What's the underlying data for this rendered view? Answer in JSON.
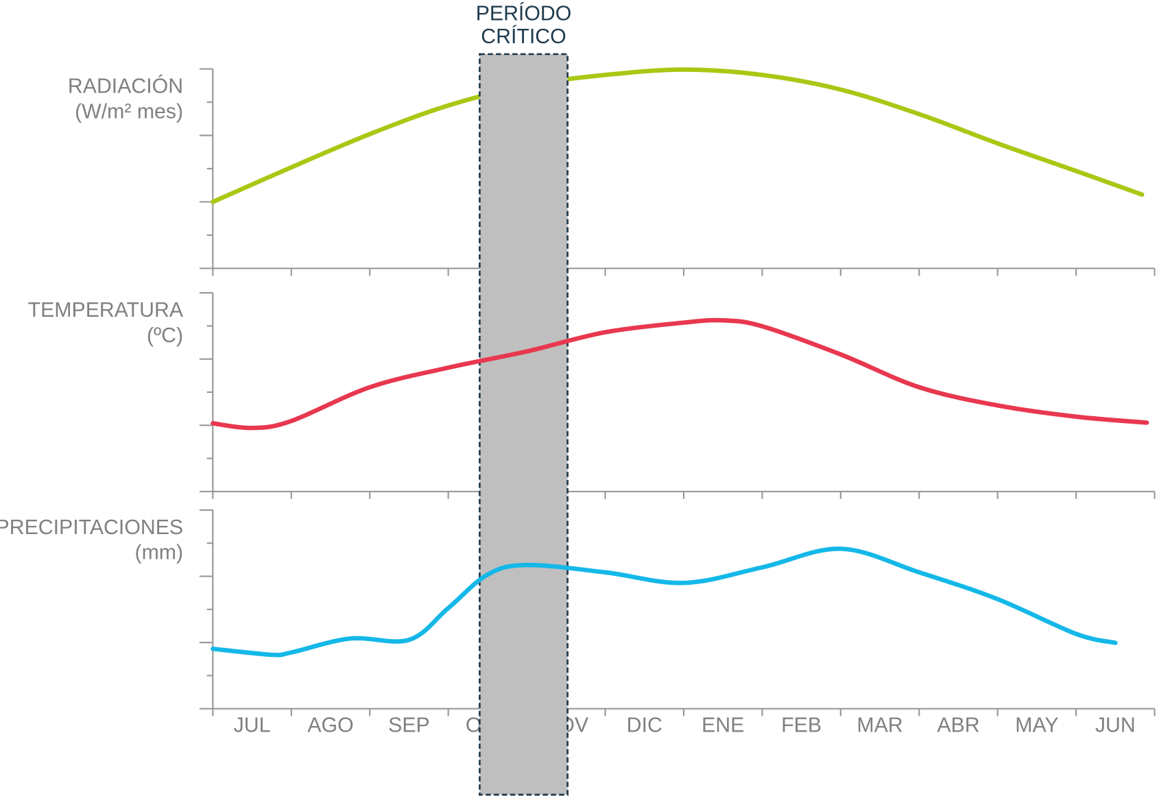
{
  "chart_data": [
    {
      "type": "line",
      "ylabel": [
        "RADIACIÓN",
        "(W/m² mes)"
      ],
      "color": "#a8c814",
      "layer": "below",
      "x": [
        0,
        1,
        2,
        3,
        4,
        5,
        6,
        7,
        8,
        9,
        10,
        11,
        11.84
      ],
      "values": [
        2.0,
        3.04,
        4.04,
        4.9,
        5.5,
        5.82,
        5.98,
        5.82,
        5.38,
        4.64,
        3.76,
        2.93,
        2.22
      ],
      "xlim": [
        0,
        12
      ],
      "xticks": [
        0,
        1,
        2,
        3,
        4,
        5,
        6,
        7,
        8,
        9,
        10,
        11,
        12
      ],
      "ylim": [
        0,
        6
      ],
      "yticks": [
        0,
        1,
        2,
        3,
        4,
        5,
        6
      ]
    },
    {
      "type": "line",
      "ylabel": [
        "TEMPERATURA",
        "(ºC)"
      ],
      "color": "#e8384f",
      "layer": "above",
      "x": [
        0,
        0.5,
        1,
        2,
        3,
        4,
        5,
        6,
        6.5,
        7,
        8,
        9,
        10,
        11,
        11.9
      ],
      "values": [
        2.06,
        1.92,
        2.13,
        3.15,
        3.74,
        4.23,
        4.81,
        5.1,
        5.17,
        4.99,
        4.14,
        3.15,
        2.6,
        2.26,
        2.08
      ],
      "xlim": [
        0,
        12
      ],
      "xticks": [
        0,
        1,
        2,
        3,
        4,
        5,
        6,
        7,
        8,
        9,
        10,
        11,
        12
      ],
      "ylim": [
        0,
        6
      ],
      "yticks": [
        0,
        1,
        2,
        3,
        4,
        5,
        6
      ]
    },
    {
      "type": "line",
      "ylabel": [
        "PRECIPITACIONES",
        "(mm)"
      ],
      "color": "#14b8e8",
      "layer": "above",
      "x": [
        0,
        0.75,
        1,
        1.75,
        2.5,
        3,
        3.5,
        4,
        5,
        6,
        7,
        8,
        9,
        10,
        11,
        11.5
      ],
      "values": [
        1.81,
        1.63,
        1.7,
        2.12,
        2.08,
        3.04,
        4.05,
        4.34,
        4.12,
        3.8,
        4.27,
        4.83,
        4.12,
        3.31,
        2.26,
        1.99
      ],
      "xlim": [
        0,
        12
      ],
      "xticks": [
        0,
        1,
        2,
        3,
        4,
        5,
        6,
        7,
        8,
        9,
        10,
        11,
        12
      ],
      "ylim": [
        0,
        6
      ],
      "yticks": [
        0,
        1,
        2,
        3,
        4,
        5,
        6
      ],
      "categories": [
        "JUL",
        "AGO",
        "SEP",
        "OCT",
        "NOV",
        "DIC",
        "ENE",
        "FEB",
        "MAR",
        "ABR",
        "MAY",
        "JUN"
      ]
    }
  ],
  "highlight": {
    "label": [
      "PERÍODO",
      "CRÍTICO"
    ],
    "xlim": [
      3.4,
      4.52
    ],
    "color": "#bfbfbf",
    "border": "#1f3a4d"
  }
}
